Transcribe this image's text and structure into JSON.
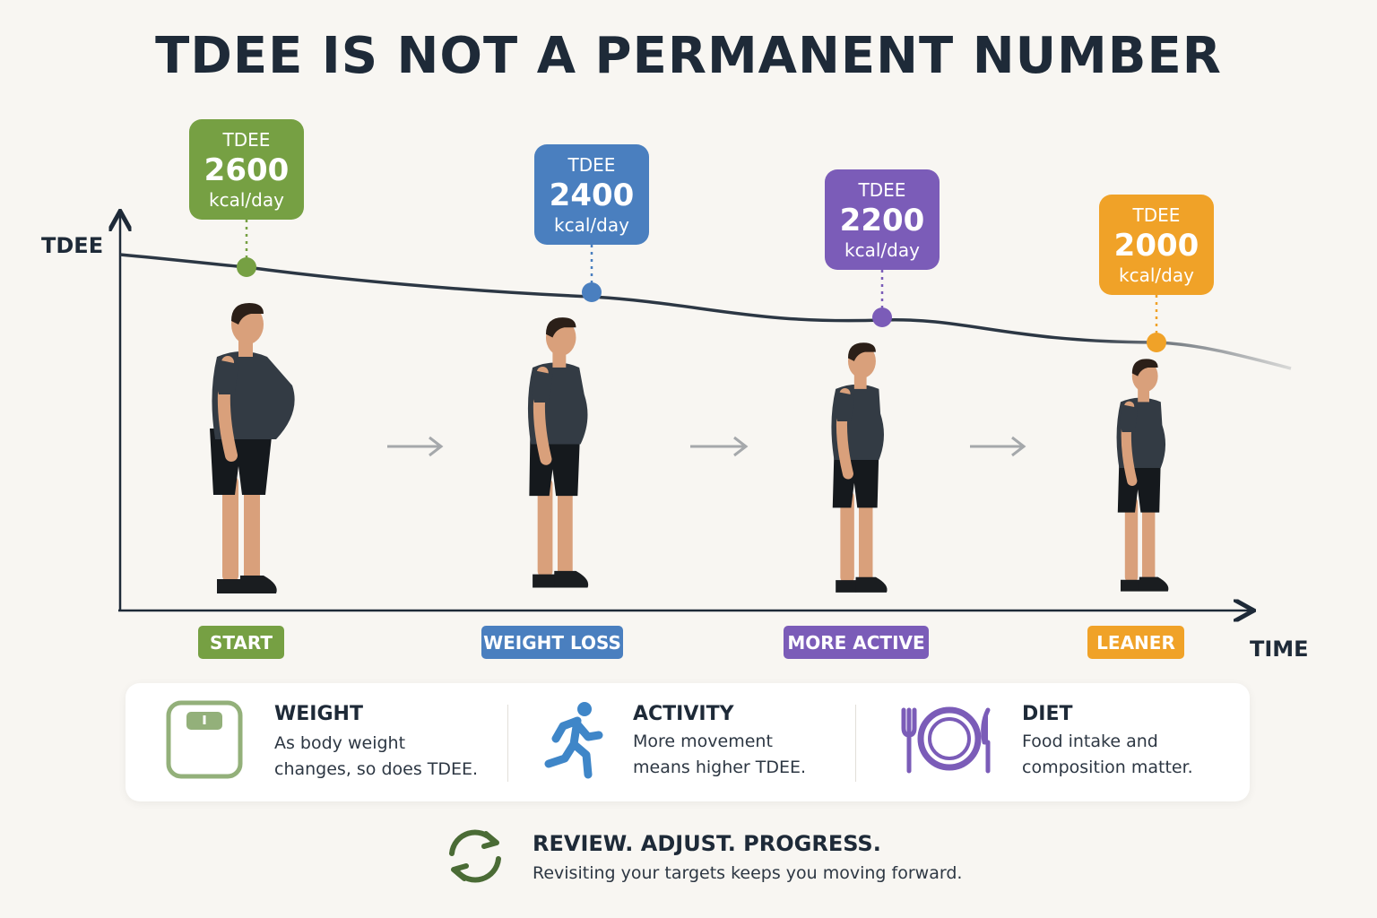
{
  "title": "TDEE IS NOT A PERMANENT NUMBER",
  "axes": {
    "y_label": "TDEE",
    "x_label": "TIME"
  },
  "colors": {
    "start": "#76a043",
    "weight_loss": "#4a7fbf",
    "more_active": "#7b5cb8",
    "leaner": "#f0a228",
    "curve": "#2c3744",
    "scale_icon": "#93b07a"
  },
  "chart_data": {
    "type": "line",
    "x": [
      "START",
      "WEIGHT LOSS",
      "MORE ACTIVE",
      "LEANER"
    ],
    "series": [
      {
        "values": [
          2600,
          2400,
          2200,
          2000
        ]
      }
    ],
    "badges": [
      {
        "label": "TDEE",
        "value": "2600",
        "unit": "kcal/day"
      },
      {
        "label": "TDEE",
        "value": "2400",
        "unit": "kcal/day"
      },
      {
        "label": "TDEE",
        "value": "2200",
        "unit": "kcal/day"
      },
      {
        "label": "TDEE",
        "value": "2000",
        "unit": "kcal/day"
      }
    ],
    "xlabel": "TIME",
    "ylabel": "TDEE",
    "grid": false
  },
  "info": [
    {
      "title": "WEIGHT",
      "text": "As body weight\nchanges, so does TDEE.",
      "icon": "scale-icon"
    },
    {
      "title": "ACTIVITY",
      "text": "More movement\nmeans higher TDEE.",
      "icon": "runner-icon"
    },
    {
      "title": "DIET",
      "text": "Food intake and\ncomposition matter.",
      "icon": "plate-icon"
    }
  ],
  "footer": {
    "title": "REVIEW. ADJUST. PROGRESS.",
    "text": "Revisiting your targets keeps you moving forward.",
    "icon": "refresh-cycle-icon"
  }
}
